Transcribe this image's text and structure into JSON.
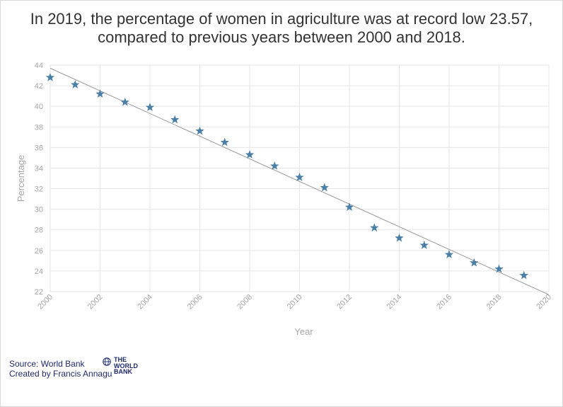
{
  "title_line1": "In 2019, the percentage of women in agriculture was at record low 23.57,",
  "title_line2": "compared to previous years between 2000 and 2018.",
  "source_line1": "Source: World Bank",
  "source_line2": "Created by Francis Annagu",
  "logo_text": "THE\nWORLD\nBANK",
  "colors": {
    "marker": "#4a7fa8",
    "trendline": "#9a9a9a",
    "grid": "#e6e6e6",
    "axis_text": "#a6a6a6",
    "source_text": "#1f2a6e"
  },
  "chart_data": {
    "type": "scatter",
    "xlabel": "Year",
    "ylabel": "Percentage",
    "xlim": [
      2000,
      2020
    ],
    "ylim": [
      22,
      44
    ],
    "x_ticks": [
      "2000",
      "2002",
      "2004",
      "2006",
      "2008",
      "2010",
      "2012",
      "2014",
      "2016",
      "2018",
      "2020"
    ],
    "y_ticks": [
      "22",
      "24",
      "26",
      "28",
      "30",
      "32",
      "34",
      "36",
      "38",
      "40",
      "42",
      "44"
    ],
    "grid": true,
    "marker": "star",
    "x": [
      2000,
      2001,
      2002,
      2003,
      2004,
      2005,
      2006,
      2007,
      2008,
      2009,
      2010,
      2011,
      2012,
      2013,
      2014,
      2015,
      2016,
      2017,
      2018,
      2019
    ],
    "y": [
      42.8,
      42.1,
      41.2,
      40.4,
      39.9,
      38.7,
      37.6,
      36.5,
      35.3,
      34.2,
      33.1,
      32.1,
      30.2,
      28.2,
      27.2,
      26.5,
      25.6,
      24.8,
      24.2,
      23.57
    ],
    "trendline": {
      "x": [
        2000,
        2020
      ],
      "y": [
        43.7,
        21.7
      ]
    }
  }
}
